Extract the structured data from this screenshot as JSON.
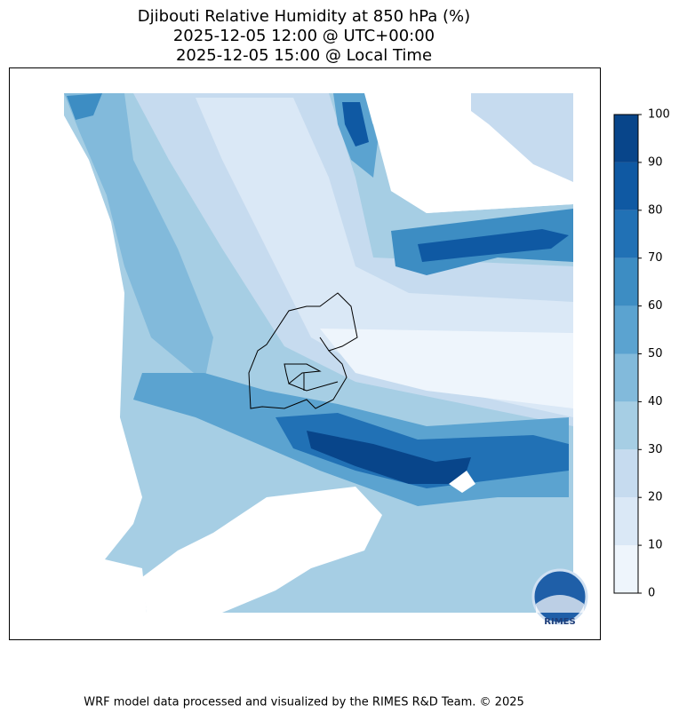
{
  "title": [
    "Djibouti Relative Humidity at 850 hPa (%)",
    "2025-12-05 12:00 @ UTC+00:00",
    "2025-12-05 15:00 @ Local Time"
  ],
  "colorbar": {
    "ticks": [
      0,
      10,
      20,
      30,
      40,
      50,
      60,
      70,
      80,
      90,
      100
    ],
    "colors": [
      "#eef5fc",
      "#dae8f6",
      "#c6dbef",
      "#a6cee4",
      "#82badb",
      "#5ba3d0",
      "#3d8dc3",
      "#2171b5",
      "#0f59a3",
      "#08458a"
    ]
  },
  "logo": "RIMES",
  "footer": "WRF model data processed and visualized by the RIMES R&D Team. © 2025"
}
